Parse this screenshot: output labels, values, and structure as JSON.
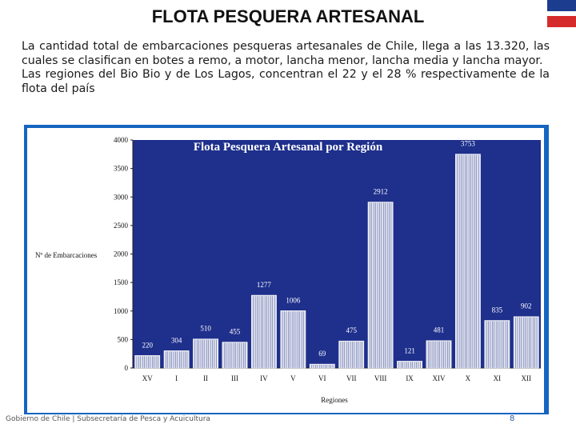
{
  "page": {
    "title": "FLOTA PESQUERA ARTESANAL",
    "paragraph1": "La cantidad total de embarcaciones pesqueras artesanales de Chile, llega a las 13.320, las cuales se clasifican en botes a remo, a motor, lancha menor, lancha media y lancha mayor.",
    "paragraph2": "Las regiones del Bio Bio y de Los Lagos, concentran el 22 y el 28 % respectivamente de la flota del país",
    "footer": "Gobierno de Chile | Subsecretaría de Pesca y Acuicultura",
    "page_number": "8",
    "colors": {
      "flag_blue": "#1b3c8f",
      "flag_red": "#d62b2b",
      "frame": "#1565c0",
      "plot_bg": "#1e2f8c",
      "bar": "#e4e6ef"
    }
  },
  "chart_data": {
    "type": "bar",
    "title": "Flota Pesquera Artesanal por Región",
    "xlabel": "Regiones",
    "ylabel": "Nº de Embarcaciones",
    "ylim": [
      0,
      4000
    ],
    "yticks": [
      "0",
      "500",
      "1000",
      "1500",
      "2000",
      "2500",
      "3000",
      "3500",
      "4000"
    ],
    "categories": [
      "XV",
      "I",
      "II",
      "III",
      "IV",
      "V",
      "VI",
      "VII",
      "VIII",
      "IX",
      "XIV",
      "X",
      "XI",
      "XII"
    ],
    "values": [
      220,
      304,
      510,
      455,
      1277,
      1006,
      69,
      475,
      2912,
      121,
      481,
      3753,
      835,
      902
    ],
    "value_labels": [
      "220",
      "304",
      "510",
      "455",
      "1277",
      "1006",
      "69",
      "475",
      "2912",
      "121",
      "481",
      "3753",
      "835",
      "902"
    ],
    "grid": false,
    "legend": "none"
  }
}
